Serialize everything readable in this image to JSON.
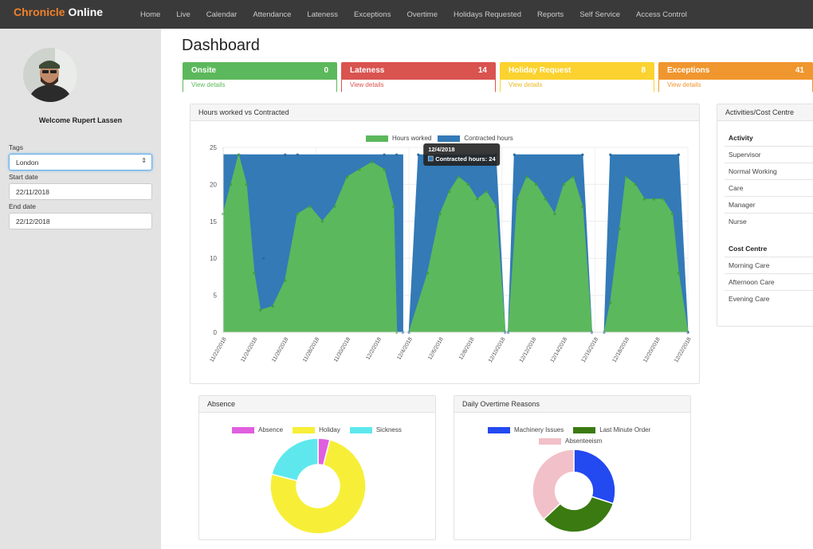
{
  "brand": {
    "part1": "Chronicle",
    "part2": "Online"
  },
  "nav": [
    "Home",
    "Live",
    "Calendar",
    "Attendance",
    "Lateness",
    "Exceptions",
    "Overtime",
    "Holidays Requested",
    "Reports",
    "Self Service",
    "Access Control"
  ],
  "sidebar": {
    "welcome": "Welcome Rupert Lassen",
    "tags_label": "Tags",
    "tags_value": "London",
    "start_label": "Start date",
    "start_value": "22/11/2018",
    "end_label": "End date",
    "end_value": "22/12/2018"
  },
  "page_title": "Dashboard",
  "stats": [
    {
      "title": "Onsite",
      "value": "0",
      "link": "View details",
      "color": "#5cb85c"
    },
    {
      "title": "Lateness",
      "value": "14",
      "link": "View details",
      "color": "#d9534f"
    },
    {
      "title": "Holiday Request",
      "value": "8",
      "link": "View details",
      "color": "#fbd22f"
    },
    {
      "title": "Exceptions",
      "value": "41",
      "link": "View details",
      "color": "#f0962e"
    }
  ],
  "hours_panel": {
    "title": "Hours worked vs Contracted"
  },
  "tooltip": {
    "date": "12/4/2018",
    "text": "Contracted hours: 24"
  },
  "activities": {
    "panel_title": "Activities/Cost Centre",
    "activity_heading": "Activity",
    "activity_items": [
      "Supervisor",
      "Normal Working",
      "Care",
      "Manager",
      "Nurse"
    ],
    "cost_heading": "Cost Centre",
    "cost_items": [
      "Morning Care",
      "Afternoon Care",
      "Evening Care"
    ]
  },
  "absence_panel": {
    "title": "Absence"
  },
  "overtime_panel": {
    "title": "Daily Overtime Reasons"
  },
  "chart_data": [
    {
      "type": "area",
      "x": [
        "11/22/2018",
        "11/24/2018",
        "11/26/2018",
        "11/28/2018",
        "11/30/2018",
        "12/2/2018",
        "12/4/2018",
        "12/6/2018",
        "12/8/2018",
        "12/10/2018",
        "12/12/2018",
        "12/14/2018",
        "12/16/2018",
        "12/18/2018",
        "12/20/2018",
        "12/22/2018"
      ],
      "ylim": [
        0,
        25
      ],
      "yticks": [
        0,
        5,
        10,
        15,
        20,
        25
      ],
      "series": [
        {
          "name": "Hours worked",
          "color": "#5cb85c"
        },
        {
          "name": "Contracted hours",
          "color": "#337ab7"
        }
      ],
      "segments": [
        {
          "contracted": [
            [
              0,
              24
            ],
            [
              0.6,
              24
            ],
            [
              1.2,
              1
            ]
          ],
          "worked": [
            [
              0,
              16
            ],
            [
              0.25,
              20
            ],
            [
              0.5,
              24
            ],
            [
              0.75,
              20
            ],
            [
              1.0,
              8
            ],
            [
              1.2,
              3
            ],
            [
              1.6,
              3.5
            ],
            [
              2.0,
              7
            ],
            [
              2.4,
              16
            ],
            [
              2.8,
              17
            ],
            [
              3.2,
              15
            ],
            [
              3.6,
              17
            ],
            [
              4.0,
              21
            ],
            [
              4.4,
              22
            ],
            [
              4.8,
              23
            ],
            [
              5.2,
              22
            ],
            [
              5.5,
              17
            ],
            [
              5.6,
              0
            ]
          ],
          "top": [
            [
              1.3,
              10
            ],
            [
              2.0,
              24
            ],
            [
              2.4,
              24
            ],
            [
              5.2,
              24
            ],
            [
              5.6,
              24
            ],
            [
              5.8,
              0
            ]
          ]
        },
        {
          "contracted": [
            [
              6.0,
              0
            ],
            [
              6.3,
              24
            ],
            [
              8.8,
              24
            ],
            [
              9.1,
              0
            ]
          ],
          "worked": [
            [
              6.0,
              0
            ],
            [
              6.6,
              8
            ],
            [
              7.0,
              16
            ],
            [
              7.3,
              19
            ],
            [
              7.6,
              21
            ],
            [
              7.9,
              20
            ],
            [
              8.2,
              18
            ],
            [
              8.5,
              19
            ],
            [
              8.8,
              17
            ],
            [
              9.1,
              0
            ]
          ]
        },
        {
          "contracted": [
            [
              9.2,
              0
            ],
            [
              9.4,
              24
            ],
            [
              11.6,
              24
            ],
            [
              11.9,
              0
            ]
          ],
          "worked": [
            [
              9.2,
              0
            ],
            [
              9.5,
              18
            ],
            [
              9.8,
              21
            ],
            [
              10.1,
              20
            ],
            [
              10.4,
              18
            ],
            [
              10.7,
              16
            ],
            [
              11.0,
              20
            ],
            [
              11.3,
              21
            ],
            [
              11.6,
              17
            ],
            [
              11.9,
              0
            ]
          ]
        },
        {
          "contracted": [
            [
              12.3,
              0
            ],
            [
              12.5,
              24
            ],
            [
              14.7,
              24
            ],
            [
              15.0,
              0
            ]
          ],
          "worked": [
            [
              12.3,
              0
            ],
            [
              12.5,
              4
            ],
            [
              12.8,
              14
            ],
            [
              13.0,
              21
            ],
            [
              13.3,
              20
            ],
            [
              13.6,
              18
            ],
            [
              13.9,
              18
            ],
            [
              14.2,
              18
            ],
            [
              14.5,
              16
            ],
            [
              14.7,
              8
            ],
            [
              15.0,
              0
            ]
          ]
        }
      ]
    },
    {
      "type": "pie",
      "legend": [
        "Absence",
        "Holiday",
        "Sickness"
      ],
      "values": [
        4,
        75,
        21
      ],
      "colors": [
        "#e05ee0",
        "#f7ef37",
        "#5ee8ee"
      ]
    },
    {
      "type": "pie",
      "legend": [
        "Machinery Issues",
        "Last Minute Order",
        "Absenteeism"
      ],
      "values": [
        30,
        33,
        37
      ],
      "colors": [
        "#2349f0",
        "#3a7a10",
        "#f2c0c8"
      ]
    }
  ]
}
